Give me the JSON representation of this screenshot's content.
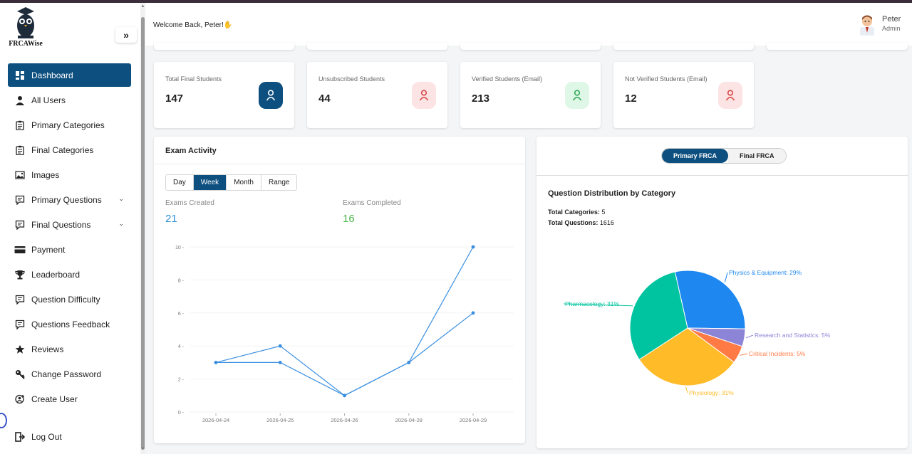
{
  "brand": {
    "name": "FRCAWise"
  },
  "sidebar": {
    "collapse_label": "»",
    "items": [
      {
        "label": "Dashboard",
        "icon": "dashboard-icon",
        "active": true
      },
      {
        "label": "All Users",
        "icon": "user-icon"
      },
      {
        "label": "Primary Categories",
        "icon": "clipboard-icon"
      },
      {
        "label": "Final Categories",
        "icon": "clipboard-icon"
      },
      {
        "label": "Images",
        "icon": "image-icon"
      },
      {
        "label": "Primary Questions",
        "icon": "question-icon",
        "expandable": true
      },
      {
        "label": "Final Questions",
        "icon": "question-icon",
        "expandable": true
      },
      {
        "label": "Payment",
        "icon": "card-icon"
      },
      {
        "label": "Leaderboard",
        "icon": "trophy-icon"
      },
      {
        "label": "Question Difficulty",
        "icon": "question-icon"
      },
      {
        "label": "Questions Feedback",
        "icon": "question-icon"
      },
      {
        "label": "Reviews",
        "icon": "star-icon"
      },
      {
        "label": "Change Password",
        "icon": "key-icon"
      },
      {
        "label": "Create User",
        "icon": "add-user-icon"
      }
    ],
    "logout_label": "Log Out"
  },
  "header": {
    "welcome": "Welcome Back, Peter!",
    "user_name": "Peter",
    "user_role": "Admin"
  },
  "stats": [
    {
      "label": "Total Final Students",
      "value": "147",
      "accent": "#0d4f7e",
      "icon_bg": "#0d4f7e",
      "icon_color": "#ffffff"
    },
    {
      "label": "Unsubscribed Students",
      "value": "44",
      "accent": "#e05555",
      "icon_bg": "#fde4e4",
      "icon_color": "#d94545"
    },
    {
      "label": "Verified Students (Email)",
      "value": "213",
      "accent": "#3fb868",
      "icon_bg": "#def7e6",
      "icon_color": "#2fa858"
    },
    {
      "label": "Not Verified Students (Email)",
      "value": "12",
      "accent": "#e05555",
      "icon_bg": "#fde4e4",
      "icon_color": "#d94545"
    }
  ],
  "exam_activity": {
    "title": "Exam Activity",
    "tabs": [
      "Day",
      "Week",
      "Month",
      "Range"
    ],
    "active_tab": "Week",
    "created_label": "Exams Created",
    "created_value": "21",
    "completed_label": "Exams Completed",
    "completed_value": "16",
    "created_color": "#2e8fd6",
    "completed_color": "#4cb84a"
  },
  "distribution": {
    "toggle": [
      "Primary FRCA",
      "Final FRCA"
    ],
    "active_toggle": "Primary FRCA",
    "title": "Question Distribution by Category",
    "total_categories_label": "Total Categories:",
    "total_categories": "5",
    "total_questions_label": "Total Questions:",
    "total_questions": "1616"
  },
  "chart_data": [
    {
      "type": "line",
      "x": [
        "2026-04-24",
        "2026-04-25",
        "2026-04-26",
        "2026-04-28",
        "2026-04-29"
      ],
      "series": [
        {
          "values": [
            3,
            4,
            1,
            3,
            10
          ],
          "color": "#3a8fe0"
        },
        {
          "values": [
            3,
            3,
            1,
            3,
            6
          ],
          "color": "#3a8fe0"
        }
      ],
      "yticks": [
        0,
        2,
        4,
        6,
        8,
        10
      ],
      "ylim": [
        0,
        10
      ],
      "grid": true
    },
    {
      "type": "pie",
      "slices": [
        {
          "label": "Physics & Equipment: 29%",
          "value": 29,
          "color": "#1e88f0"
        },
        {
          "label": "Research and Statistics: 5%",
          "value": 5,
          "color": "#8c84d6"
        },
        {
          "label": "Critical Incidents: 5%",
          "value": 5,
          "color": "#ff7a45"
        },
        {
          "label": "Physiology: 31%",
          "value": 31,
          "color": "#ffbb28"
        },
        {
          "label": "Pharmacology: 31%",
          "value": 31,
          "color": "#00c49f"
        }
      ]
    }
  ]
}
